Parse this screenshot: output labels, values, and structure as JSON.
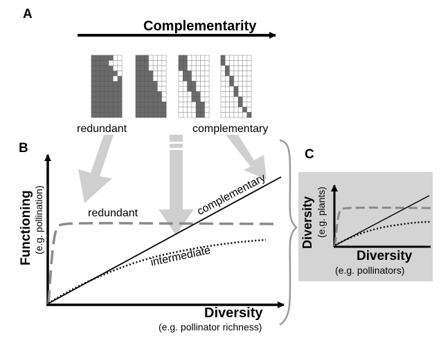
{
  "panels": {
    "a": "A",
    "b": "B",
    "c": "C"
  },
  "panel_a": {
    "arrow_label": "Complementarity",
    "left_label": "redundant",
    "right_label": "complementary"
  },
  "panel_b": {
    "y_title": "Functioning",
    "y_sub": "(e.g. pollination)",
    "x_title": "Diversity",
    "x_sub": "(e.g. pollinator richness)",
    "curve_labels": {
      "redundant": "redundant",
      "complementary": "complementary",
      "intermediate": "intermediate"
    }
  },
  "panel_c": {
    "y_title": "Diversity",
    "y_sub": "(e.g. plants)",
    "x_title": "Diversity",
    "x_sub": "(e.g. pollinators)"
  },
  "colors": {
    "matrix_fill": "#6b6b6b",
    "light_arrow": "#cfcfcf",
    "dashed_curve": "#8a8a8a",
    "panel_c_bg": "#d4d4d4"
  }
}
